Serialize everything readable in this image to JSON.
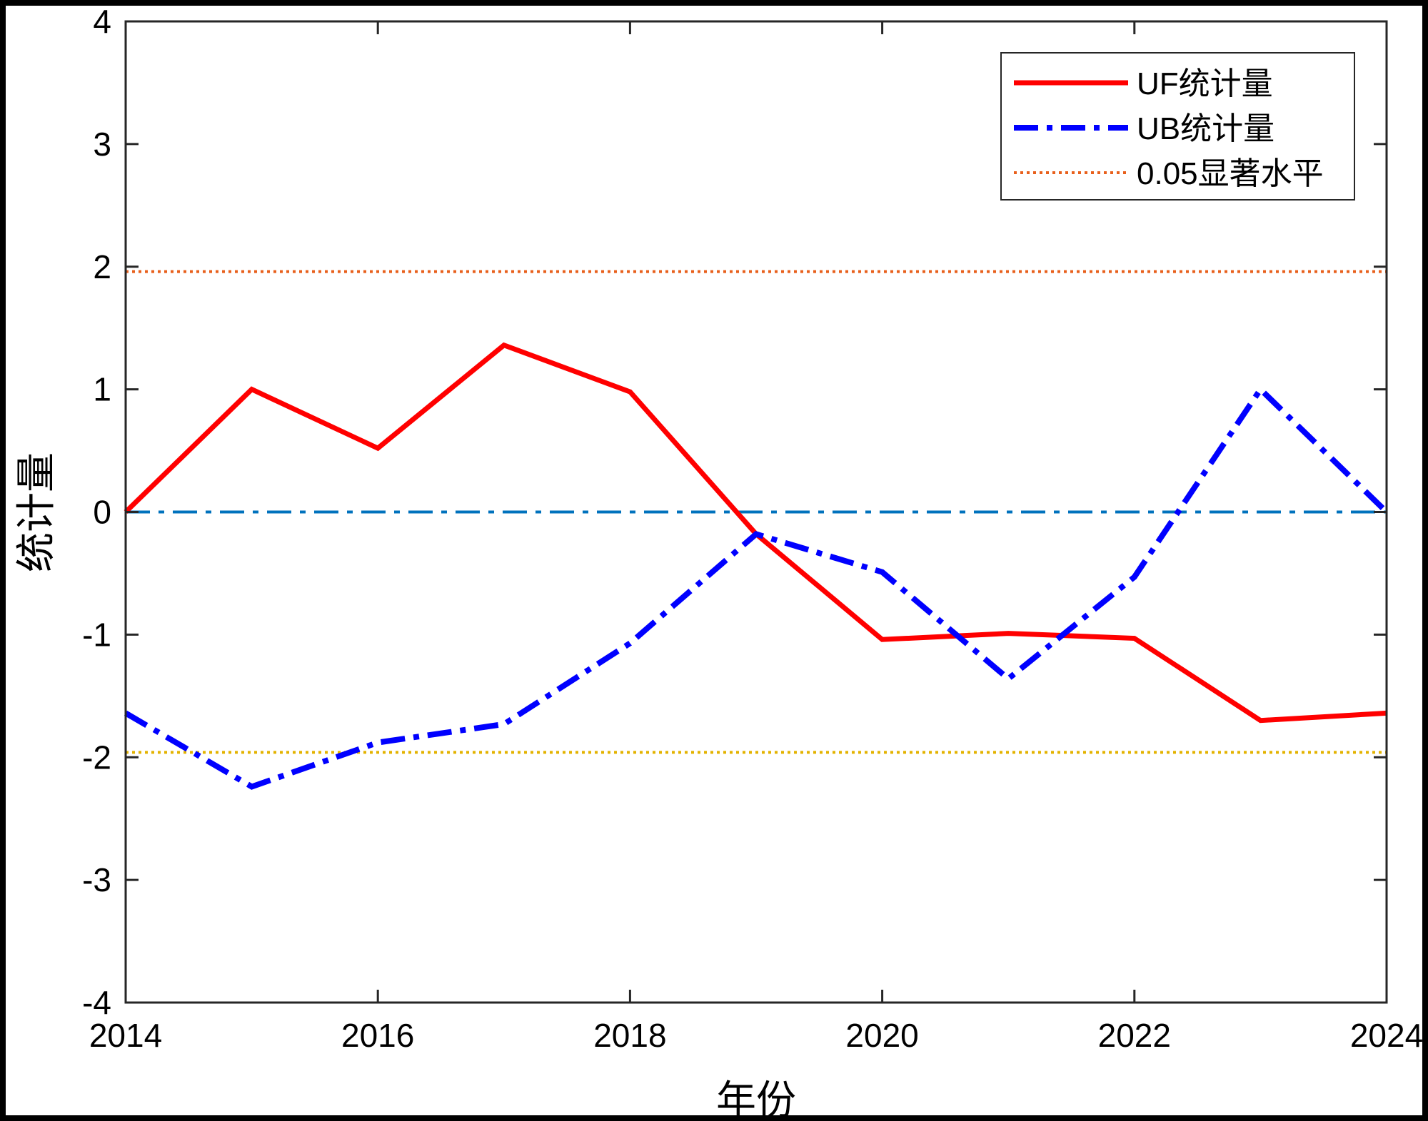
{
  "chart_data": {
    "type": "line",
    "xlabel": "年份",
    "ylabel": "统计量",
    "xlim": [
      2014,
      2024
    ],
    "ylim": [
      -4,
      4
    ],
    "x_ticks": [
      2014,
      2016,
      2018,
      2020,
      2022,
      2024
    ],
    "y_ticks": [
      -4,
      -3,
      -2,
      -1,
      0,
      1,
      2,
      3,
      4
    ],
    "x_tick_labels": [
      "2014",
      "2016",
      "2018",
      "2020",
      "2022",
      "2024"
    ],
    "y_tick_labels": [
      "-4",
      "-3",
      "-2",
      "-1",
      "0",
      "1",
      "2",
      "3",
      "4"
    ],
    "x": [
      2014,
      2015,
      2016,
      2017,
      2018,
      2019,
      2020,
      2021,
      2022,
      2023,
      2024
    ],
    "series": [
      {
        "name": "UF统计量",
        "color": "#ff0000",
        "style": "solid",
        "values": [
          0,
          1.0,
          0.52,
          1.36,
          0.98,
          -0.18,
          -1.04,
          -0.99,
          -1.03,
          -1.7,
          -1.64
        ]
      },
      {
        "name": "UB统计量",
        "color": "#0000ff",
        "style": "dashdot",
        "values": [
          -1.64,
          -2.24,
          -1.88,
          -1.73,
          -1.07,
          -0.18,
          -0.49,
          -1.36,
          -0.53,
          1.0,
          0
        ]
      }
    ],
    "reference_lines": [
      {
        "name": "0.05显著水平",
        "y": 1.96,
        "color": "#e8601c",
        "style": "dotted",
        "in_legend": true
      },
      {
        "y": -1.96,
        "color": "#e3b300",
        "style": "dotted",
        "in_legend": false
      },
      {
        "y": 0,
        "color": "#0072bd",
        "style": "dashdot",
        "in_legend": false
      }
    ],
    "legend": {
      "position": "top-right",
      "entries": [
        "UF统计量",
        "UB统计量",
        "0.05显著水平"
      ]
    },
    "grid": false
  }
}
